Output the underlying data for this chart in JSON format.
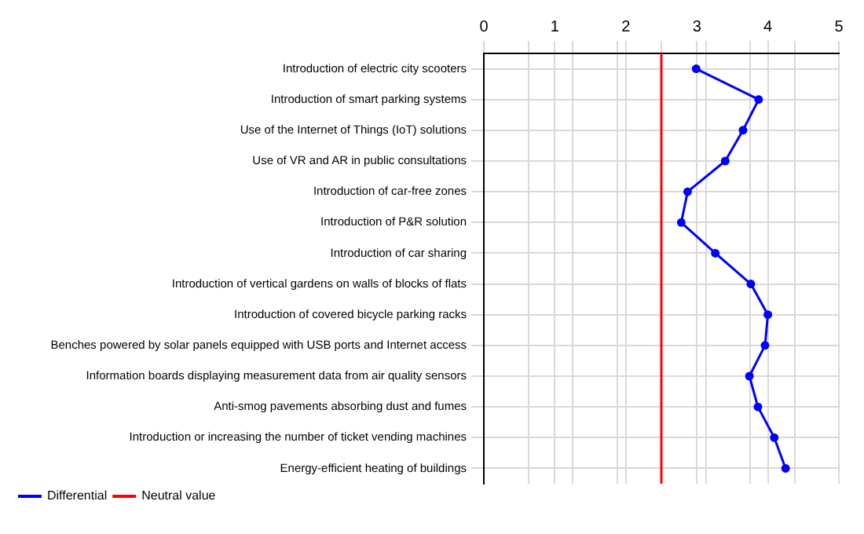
{
  "chart_data": {
    "type": "line",
    "orientation": "horizontal",
    "categories": [
      "Introduction of electric city scooters",
      "Introduction of smart parking systems",
      "Use of the Internet of Things (IoT) solutions",
      "Use of VR and AR in public consultations",
      "Introduction of car-free zones",
      "Introduction of P&R solution",
      "Introduction of car sharing",
      "Introduction of vertical gardens on walls of blocks of flats",
      "Introduction of covered bicycle parking racks",
      "Benches powered by solar panels equipped with USB ports and Internet access",
      "Information boards displaying measurement data from air quality sensors",
      "Anti-smog pavements absorbing dust and fumes",
      "Introduction or increasing the number of ticket vending machines",
      "Energy-efficient heating of buildings"
    ],
    "series": [
      {
        "name": "Differential",
        "color": "#0000ff",
        "values": [
          2.99,
          3.87,
          3.65,
          3.4,
          2.87,
          2.78,
          3.26,
          3.76,
          4.0,
          3.96,
          3.74,
          3.86,
          4.09,
          4.25
        ]
      }
    ],
    "xlim": [
      0,
      5
    ],
    "xticks": [
      0,
      {
        "value": 0.625,
        "label": null
      },
      1,
      {
        "value": 1.25,
        "label": null
      },
      {
        "value": 1.875,
        "label": null
      },
      2,
      {
        "value": 2.5,
        "label": null
      },
      3,
      {
        "value": 3.125,
        "label": null
      },
      {
        "value": 3.75,
        "label": null
      },
      4,
      {
        "value": 4.375,
        "label": null
      },
      5
    ],
    "ref_lines": [
      {
        "axis": "x",
        "value": 2.5,
        "label": "Neutral value",
        "color": "#ff0000"
      }
    ],
    "grid": true,
    "legend": "bottom left",
    "marker": "circle",
    "line_style": "solid"
  }
}
